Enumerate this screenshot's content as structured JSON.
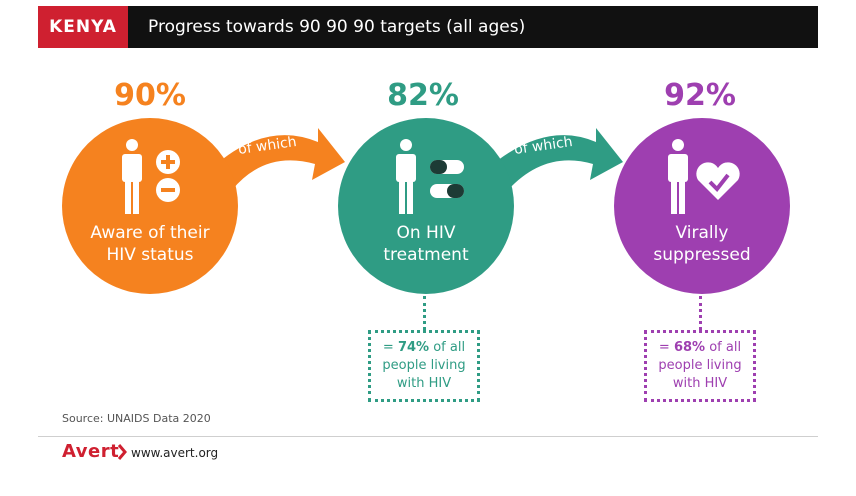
{
  "header": {
    "country": "KENYA",
    "title": "Progress towards 90 90 90 targets (all ages)"
  },
  "stages": [
    {
      "percent": "90%",
      "label_line1": "Aware of their",
      "label_line2": "HIV status",
      "color": "#f5821f"
    },
    {
      "percent": "82%",
      "label_line1": "On HIV",
      "label_line2": "treatment",
      "color": "#2f9c84"
    },
    {
      "percent": "92%",
      "label_line1": "Virally",
      "label_line2": "suppressed",
      "color": "#9e3fb0"
    }
  ],
  "connectors": [
    "of which",
    "of which"
  ],
  "callouts": [
    {
      "prefix": "= ",
      "value": "74%",
      "line1_suffix": " of all",
      "line2": "people living",
      "line3": "with HIV",
      "color": "#2f9c84"
    },
    {
      "prefix": "= ",
      "value": "68%",
      "line1_suffix": " of all",
      "line2": "people living",
      "line3": "with HIV",
      "color": "#9e3fb0"
    }
  ],
  "source": "Source: UNAIDS Data 2020",
  "footer": {
    "logo": "Avert",
    "url": "www.avert.org"
  },
  "colors": {
    "accent_red": "#cf2030",
    "header_bg": "#111111",
    "orange": "#f5821f",
    "teal": "#2f9c84",
    "purple": "#9e3fb0"
  }
}
